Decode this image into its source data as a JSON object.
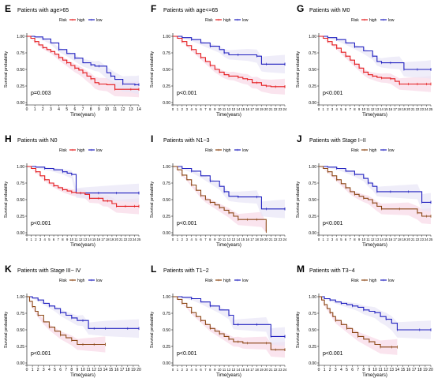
{
  "colors": {
    "high": "#e41a1c",
    "low": "#1f1fbf",
    "high_dark": "#8b4513",
    "ci": "#f9e1ec",
    "axis": "#000000"
  },
  "common": {
    "legend_title": "Risk",
    "legend_high": "high",
    "legend_low": "low",
    "xlabel": "Time(years)",
    "ylabel": "Survival probability",
    "yticks": [
      "0.00",
      "0.25",
      "0.50",
      "0.75",
      "1.00"
    ]
  },
  "chart_data": [
    {
      "type": "line",
      "letter": "E",
      "title": "Patients with age>65",
      "pvalue": "p=0.003",
      "xlim": [
        0,
        14
      ],
      "ylim": [
        0,
        1
      ],
      "high_style": "red",
      "series": [
        {
          "name": "high",
          "x": [
            0,
            0.5,
            1,
            1.5,
            2,
            2.5,
            3,
            3.5,
            4,
            4.5,
            5,
            5.5,
            6,
            6.5,
            7,
            7.5,
            8,
            8.5,
            9,
            10,
            11,
            12,
            13,
            14
          ],
          "values": [
            1,
            0.97,
            0.92,
            0.87,
            0.83,
            0.8,
            0.77,
            0.73,
            0.68,
            0.64,
            0.6,
            0.56,
            0.52,
            0.49,
            0.45,
            0.4,
            0.36,
            0.3,
            0.28,
            0.27,
            0.2,
            0.2,
            0.2,
            0.2
          ]
        },
        {
          "name": "low",
          "x": [
            0,
            1,
            2,
            3,
            4,
            5,
            6,
            7,
            8,
            8.5,
            9,
            10,
            10.5,
            11,
            12,
            13,
            13.5,
            14
          ],
          "values": [
            1,
            0.99,
            0.96,
            0.9,
            0.8,
            0.74,
            0.67,
            0.6,
            0.57,
            0.55,
            0.55,
            0.45,
            0.4,
            0.35,
            0.28,
            0.28,
            0.27,
            0.27
          ]
        }
      ]
    },
    {
      "type": "line",
      "letter": "F",
      "title": "Patients with age<=65",
      "pvalue": "p<0.001",
      "xlim": [
        0,
        24
      ],
      "ylim": [
        0,
        1
      ],
      "high_style": "red",
      "series": [
        {
          "name": "high",
          "x": [
            0,
            1,
            2,
            3,
            4,
            5,
            6,
            7,
            8,
            9,
            10,
            11,
            12,
            13,
            14,
            15,
            16,
            17,
            18,
            19,
            20,
            21,
            22,
            23,
            24
          ],
          "values": [
            1,
            0.97,
            0.92,
            0.86,
            0.8,
            0.74,
            0.68,
            0.62,
            0.56,
            0.5,
            0.46,
            0.42,
            0.4,
            0.4,
            0.38,
            0.36,
            0.35,
            0.3,
            0.3,
            0.26,
            0.25,
            0.24,
            0.24,
            0.24,
            0.24
          ]
        },
        {
          "name": "low",
          "x": [
            0,
            2,
            4,
            6,
            8,
            10,
            11,
            12,
            14,
            16,
            18,
            19,
            20,
            22,
            24
          ],
          "values": [
            1,
            0.98,
            0.95,
            0.9,
            0.85,
            0.8,
            0.75,
            0.72,
            0.72,
            0.72,
            0.7,
            0.58,
            0.58,
            0.58,
            0.58
          ]
        }
      ]
    },
    {
      "type": "line",
      "letter": "G",
      "title": "Patients with M0",
      "pvalue": "p<0.001",
      "xlim": [
        0,
        25
      ],
      "ylim": [
        0,
        1
      ],
      "high_style": "red",
      "series": [
        {
          "name": "high",
          "x": [
            0,
            1,
            2,
            3,
            4,
            5,
            6,
            7,
            8,
            9,
            10,
            11,
            12,
            13,
            14,
            15,
            16,
            17,
            18,
            19,
            20,
            21,
            22,
            23,
            24,
            25
          ],
          "values": [
            1,
            0.97,
            0.92,
            0.87,
            0.82,
            0.76,
            0.7,
            0.64,
            0.58,
            0.52,
            0.46,
            0.42,
            0.4,
            0.38,
            0.37,
            0.37,
            0.36,
            0.32,
            0.28,
            0.28,
            0.28,
            0.28,
            0.28,
            0.28,
            0.28,
            0.28
          ]
        },
        {
          "name": "low",
          "x": [
            0,
            2,
            4,
            6,
            8,
            10,
            12,
            13,
            14,
            15,
            16,
            18,
            19,
            20,
            22,
            24,
            25
          ],
          "values": [
            1,
            0.98,
            0.95,
            0.9,
            0.84,
            0.78,
            0.7,
            0.62,
            0.6,
            0.6,
            0.6,
            0.6,
            0.5,
            0.5,
            0.5,
            0.5,
            0.5
          ]
        }
      ]
    },
    {
      "type": "line",
      "letter": "H",
      "title": "Patients with N0",
      "pvalue": "p<0.001",
      "xlim": [
        0,
        25
      ],
      "ylim": [
        0,
        1
      ],
      "high_style": "red",
      "series": [
        {
          "name": "high",
          "x": [
            0,
            1,
            2,
            3,
            4,
            5,
            6,
            7,
            8,
            9,
            10,
            11,
            12,
            13,
            14,
            15,
            16,
            17,
            18,
            19,
            20,
            21,
            22,
            23,
            24,
            25
          ],
          "values": [
            1,
            0.97,
            0.92,
            0.86,
            0.8,
            0.75,
            0.71,
            0.68,
            0.65,
            0.63,
            0.61,
            0.6,
            0.6,
            0.58,
            0.52,
            0.52,
            0.52,
            0.48,
            0.48,
            0.44,
            0.4,
            0.4,
            0.4,
            0.4,
            0.4,
            0.4
          ]
        },
        {
          "name": "low",
          "x": [
            0,
            2,
            4,
            6,
            8,
            9,
            10,
            11,
            12,
            14,
            16,
            18,
            20,
            22,
            25
          ],
          "values": [
            1,
            0.99,
            0.97,
            0.95,
            0.92,
            0.9,
            0.88,
            0.6,
            0.6,
            0.6,
            0.6,
            0.6,
            0.6,
            0.6,
            0.6
          ]
        }
      ]
    },
    {
      "type": "line",
      "letter": "I",
      "title": "Patients with N1~3",
      "pvalue": "p<0.001",
      "xlim": [
        0,
        24
      ],
      "ylim": [
        0,
        1
      ],
      "high_style": "brown",
      "series": [
        {
          "name": "high",
          "x": [
            0,
            1,
            2,
            3,
            4,
            5,
            6,
            7,
            8,
            9,
            10,
            11,
            12,
            13,
            14,
            15,
            16,
            17,
            18,
            19,
            20
          ],
          "values": [
            1,
            0.95,
            0.87,
            0.8,
            0.72,
            0.64,
            0.56,
            0.5,
            0.46,
            0.42,
            0.38,
            0.34,
            0.3,
            0.25,
            0.2,
            0.2,
            0.2,
            0.2,
            0.2,
            0.2,
            0.02
          ]
        },
        {
          "name": "low",
          "x": [
            0,
            2,
            4,
            6,
            8,
            10,
            11,
            12,
            14,
            16,
            18,
            19,
            20,
            22,
            24
          ],
          "values": [
            1,
            0.97,
            0.93,
            0.86,
            0.78,
            0.7,
            0.62,
            0.55,
            0.54,
            0.54,
            0.54,
            0.36,
            0.36,
            0.36,
            0.36
          ]
        }
      ]
    },
    {
      "type": "line",
      "letter": "J",
      "title": "Patients with Stage I~II",
      "pvalue": "p<0.001",
      "xlim": [
        0,
        25
      ],
      "ylim": [
        0,
        1
      ],
      "high_style": "brown",
      "series": [
        {
          "name": "high",
          "x": [
            0,
            1,
            2,
            3,
            4,
            5,
            6,
            7,
            8,
            9,
            10,
            11,
            12,
            13,
            14,
            16,
            18,
            20,
            22,
            23,
            24,
            25
          ],
          "values": [
            1,
            0.97,
            0.92,
            0.86,
            0.8,
            0.74,
            0.68,
            0.62,
            0.58,
            0.55,
            0.52,
            0.5,
            0.45,
            0.4,
            0.36,
            0.36,
            0.36,
            0.36,
            0.3,
            0.25,
            0.25,
            0.25
          ]
        },
        {
          "name": "low",
          "x": [
            0,
            2,
            4,
            6,
            8,
            10,
            11,
            12,
            13,
            14,
            16,
            18,
            20,
            22,
            23,
            24,
            25
          ],
          "values": [
            1,
            0.99,
            0.97,
            0.93,
            0.88,
            0.82,
            0.75,
            0.7,
            0.62,
            0.62,
            0.62,
            0.62,
            0.62,
            0.62,
            0.46,
            0.46,
            0.46
          ]
        }
      ]
    },
    {
      "type": "line",
      "letter": "K",
      "title": "Patients with Stage III~ IV",
      "pvalue": "p<0.001",
      "xlim": [
        0,
        20
      ],
      "ylim": [
        0,
        1
      ],
      "high_style": "brown",
      "series": [
        {
          "name": "high",
          "x": [
            0,
            0.5,
            1,
            1.5,
            2,
            3,
            4,
            5,
            6,
            7,
            8,
            9,
            10,
            11,
            12,
            13,
            14
          ],
          "values": [
            1,
            0.93,
            0.85,
            0.78,
            0.72,
            0.62,
            0.54,
            0.48,
            0.42,
            0.38,
            0.34,
            0.28,
            0.28,
            0.28,
            0.28,
            0.28,
            0.28
          ]
        },
        {
          "name": "low",
          "x": [
            0,
            1,
            2,
            3,
            4,
            5,
            6,
            7,
            8,
            9,
            10,
            11,
            12,
            13,
            14,
            16,
            18,
            20
          ],
          "values": [
            1,
            0.98,
            0.95,
            0.9,
            0.86,
            0.82,
            0.76,
            0.72,
            0.68,
            0.64,
            0.64,
            0.52,
            0.52,
            0.52,
            0.52,
            0.52,
            0.52,
            0.52
          ]
        }
      ]
    },
    {
      "type": "line",
      "letter": "L",
      "title": "Patients with T1~2",
      "pvalue": "p<0.001",
      "xlim": [
        0,
        24
      ],
      "ylim": [
        0,
        1
      ],
      "high_style": "brown",
      "series": [
        {
          "name": "high",
          "x": [
            0,
            1,
            2,
            3,
            4,
            5,
            6,
            7,
            8,
            9,
            10,
            11,
            12,
            13,
            14,
            15,
            16,
            18,
            20,
            21,
            22,
            23,
            24
          ],
          "values": [
            1,
            0.96,
            0.9,
            0.84,
            0.76,
            0.7,
            0.64,
            0.58,
            0.52,
            0.48,
            0.44,
            0.4,
            0.36,
            0.32,
            0.32,
            0.3,
            0.3,
            0.3,
            0.3,
            0.2,
            0.2,
            0.2,
            0.2
          ]
        },
        {
          "name": "low",
          "x": [
            0,
            2,
            4,
            6,
            8,
            10,
            12,
            13,
            14,
            16,
            18,
            20,
            21,
            22,
            24
          ],
          "values": [
            1,
            0.99,
            0.97,
            0.92,
            0.86,
            0.8,
            0.72,
            0.58,
            0.58,
            0.58,
            0.58,
            0.58,
            0.4,
            0.4,
            0.4
          ]
        }
      ]
    },
    {
      "type": "line",
      "letter": "M",
      "title": "Patients with T3~4",
      "pvalue": "p<0.001",
      "xlim": [
        0,
        20
      ],
      "ylim": [
        0,
        1
      ],
      "high_style": "brown",
      "series": [
        {
          "name": "high",
          "x": [
            0,
            0.5,
            1,
            1.5,
            2,
            2.5,
            3,
            4,
            5,
            6,
            7,
            8,
            9,
            10,
            11,
            12,
            13,
            14
          ],
          "values": [
            1,
            0.95,
            0.88,
            0.82,
            0.76,
            0.7,
            0.64,
            0.58,
            0.52,
            0.46,
            0.4,
            0.36,
            0.32,
            0.28,
            0.24,
            0.24,
            0.24,
            0.24
          ]
        },
        {
          "name": "low",
          "x": [
            0,
            1,
            2,
            3,
            4,
            5,
            6,
            7,
            8,
            9,
            10,
            11,
            12,
            13,
            14,
            16,
            18,
            20
          ],
          "values": [
            1,
            0.97,
            0.95,
            0.92,
            0.9,
            0.88,
            0.86,
            0.84,
            0.8,
            0.78,
            0.76,
            0.7,
            0.66,
            0.6,
            0.5,
            0.5,
            0.5,
            0.5
          ]
        }
      ]
    }
  ]
}
